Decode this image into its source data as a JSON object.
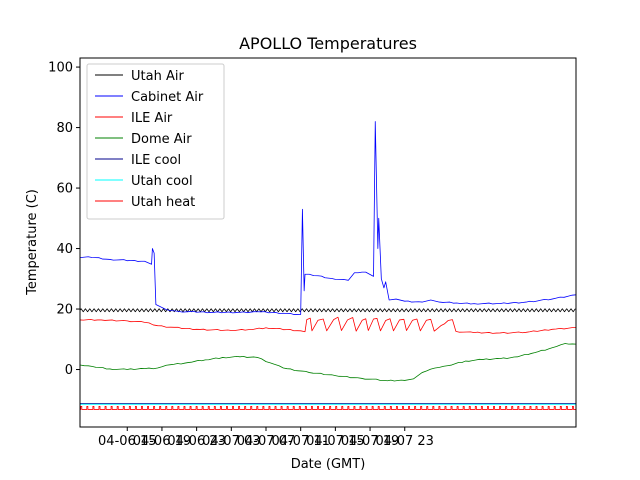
{
  "chart_data": {
    "type": "line",
    "title": "APOLLO Temperatures",
    "xlabel": "Date (GMT)",
    "ylabel": "Temperature (C)",
    "xlim": [
      9.55,
      66.75
    ],
    "ylim": [
      -19,
      103
    ],
    "x_ticks": [
      {
        "x": 15,
        "label": "04-06 15"
      },
      {
        "x": 19,
        "label": "04-06 19"
      },
      {
        "x": 23,
        "label": "04-06 23"
      },
      {
        "x": 27,
        "label": "04-07 03"
      },
      {
        "x": 31,
        "label": "04-07 07"
      },
      {
        "x": 35,
        "label": "04-07 11"
      },
      {
        "x": 39,
        "label": "04-07 15"
      },
      {
        "x": 43,
        "label": "04-07 19"
      },
      {
        "x": 47,
        "label": "04-07 23"
      }
    ],
    "y_ticks": [
      0,
      20,
      40,
      60,
      80,
      100
    ],
    "legend_position": "top-left",
    "series": [
      {
        "name": "Utah Air",
        "color": "#000000",
        "style": "oscillating",
        "points": [
          [
            9.55,
            19.6
          ],
          [
            66.75,
            19.6
          ]
        ],
        "amplitude": 0.5,
        "period": 0.5
      },
      {
        "name": "Cabinet Air",
        "color": "#0000ff",
        "points": [
          [
            9.55,
            37
          ],
          [
            10.5,
            37.3
          ],
          [
            13,
            36.4
          ],
          [
            17,
            35.8
          ],
          [
            17.8,
            34.8
          ],
          [
            17.9,
            40
          ],
          [
            18.1,
            38.5
          ],
          [
            18.3,
            21.5
          ],
          [
            19.5,
            19.8
          ],
          [
            21,
            19.2
          ],
          [
            25,
            18.9
          ],
          [
            28,
            18.9
          ],
          [
            30,
            19.1
          ],
          [
            33,
            18.6
          ],
          [
            35,
            18.2
          ],
          [
            35.2,
            53
          ],
          [
            35.4,
            26
          ],
          [
            35.5,
            31.5
          ],
          [
            37,
            31
          ],
          [
            39,
            29.8
          ],
          [
            40.5,
            29.5
          ],
          [
            41.2,
            32
          ],
          [
            42.5,
            32.2
          ],
          [
            43.4,
            30.8
          ],
          [
            43.6,
            82
          ],
          [
            43.9,
            40
          ],
          [
            44,
            50
          ],
          [
            44.3,
            30
          ],
          [
            44.6,
            27
          ],
          [
            44.8,
            29
          ],
          [
            45.2,
            23
          ],
          [
            46,
            23.3
          ],
          [
            47,
            22.6
          ],
          [
            49,
            22.3
          ],
          [
            50,
            23
          ],
          [
            51,
            22.3
          ],
          [
            53,
            22
          ],
          [
            55,
            21.8
          ],
          [
            58,
            21.8
          ],
          [
            61,
            22.3
          ],
          [
            64,
            23.3
          ],
          [
            66.75,
            24.7
          ]
        ]
      },
      {
        "name": "ILE Air",
        "color": "#ff0000",
        "points": [
          [
            9.55,
            16.4
          ],
          [
            12,
            16.4
          ],
          [
            15,
            16.1
          ],
          [
            17,
            15.6
          ],
          [
            18.5,
            14.5
          ],
          [
            20,
            14
          ],
          [
            23,
            13.3
          ],
          [
            27,
            12.9
          ],
          [
            29,
            13.2
          ],
          [
            31,
            13.8
          ],
          [
            35,
            12.8
          ],
          [
            35.5,
            12.5
          ],
          [
            35.7,
            16.5
          ],
          [
            36.1,
            17
          ],
          [
            36.3,
            12.8
          ],
          [
            37,
            16.3
          ],
          [
            37.6,
            16.7
          ],
          [
            38,
            12.8
          ],
          [
            38.8,
            16.5
          ],
          [
            39.3,
            17.3
          ],
          [
            39.7,
            12.9
          ],
          [
            40.4,
            16.4
          ],
          [
            41,
            17.2
          ],
          [
            41.4,
            12.7
          ],
          [
            42.1,
            16.3
          ],
          [
            42.5,
            16.8
          ],
          [
            42.8,
            12.9
          ],
          [
            43.4,
            16.7
          ],
          [
            43.8,
            16.9
          ],
          [
            44.2,
            12.8
          ],
          [
            44.8,
            16.2
          ],
          [
            45.3,
            16.8
          ],
          [
            45.7,
            12.8
          ],
          [
            46.4,
            16.4
          ],
          [
            46.9,
            16.6
          ],
          [
            47.2,
            12.9
          ],
          [
            47.9,
            16.3
          ],
          [
            48.4,
            16.7
          ],
          [
            48.8,
            12.8
          ],
          [
            49.5,
            16.3
          ],
          [
            50,
            16.6
          ],
          [
            50.4,
            12.7
          ],
          [
            52,
            16.2
          ],
          [
            52.5,
            16.5
          ],
          [
            52.9,
            12.6
          ],
          [
            55,
            12.2
          ],
          [
            58,
            12.1
          ],
          [
            61,
            12.3
          ],
          [
            64,
            13.3
          ],
          [
            66.75,
            13.9
          ]
        ]
      },
      {
        "name": "Dome Air",
        "color": "#008000",
        "points": [
          [
            9.55,
            1.5
          ],
          [
            11,
            1
          ],
          [
            13,
            0.2
          ],
          [
            15,
            0
          ],
          [
            17,
            0.3
          ],
          [
            18.5,
            0.5
          ],
          [
            20,
            1.6
          ],
          [
            22,
            2.3
          ],
          [
            24,
            3.2
          ],
          [
            26,
            4
          ],
          [
            28,
            4.2
          ],
          [
            30,
            4
          ],
          [
            31.5,
            2.2
          ],
          [
            33,
            0.5
          ],
          [
            36,
            -1
          ],
          [
            39,
            -2
          ],
          [
            42,
            -2.9
          ],
          [
            45,
            -3.7
          ],
          [
            47,
            -3.6
          ],
          [
            48,
            -3.1
          ],
          [
            49,
            -1
          ],
          [
            50.5,
            0.5
          ],
          [
            52,
            1.3
          ],
          [
            54,
            2.8
          ],
          [
            56,
            3.3
          ],
          [
            58,
            3.6
          ],
          [
            60,
            4.2
          ],
          [
            62,
            5.6
          ],
          [
            64,
            7.2
          ],
          [
            65.5,
            8.6
          ],
          [
            66.75,
            8.4
          ]
        ]
      },
      {
        "name": "ILE cool",
        "color": "#00008b",
        "style": "flat",
        "points": [
          [
            9.55,
            -11.2
          ],
          [
            66.75,
            -11.2
          ]
        ]
      },
      {
        "name": "Utah cool",
        "color": "#00ffff",
        "style": "flat",
        "points": [
          [
            9.55,
            -11.5
          ],
          [
            66.75,
            -11.5
          ]
        ]
      },
      {
        "name": "Utah heat",
        "color": "#ff0000",
        "style": "pulse",
        "points": [
          [
            9.55,
            -13.2
          ],
          [
            66.75,
            -13.2
          ]
        ],
        "pulse_low": -13.2,
        "pulse_high": -12.2,
        "period": 0.7
      }
    ]
  }
}
